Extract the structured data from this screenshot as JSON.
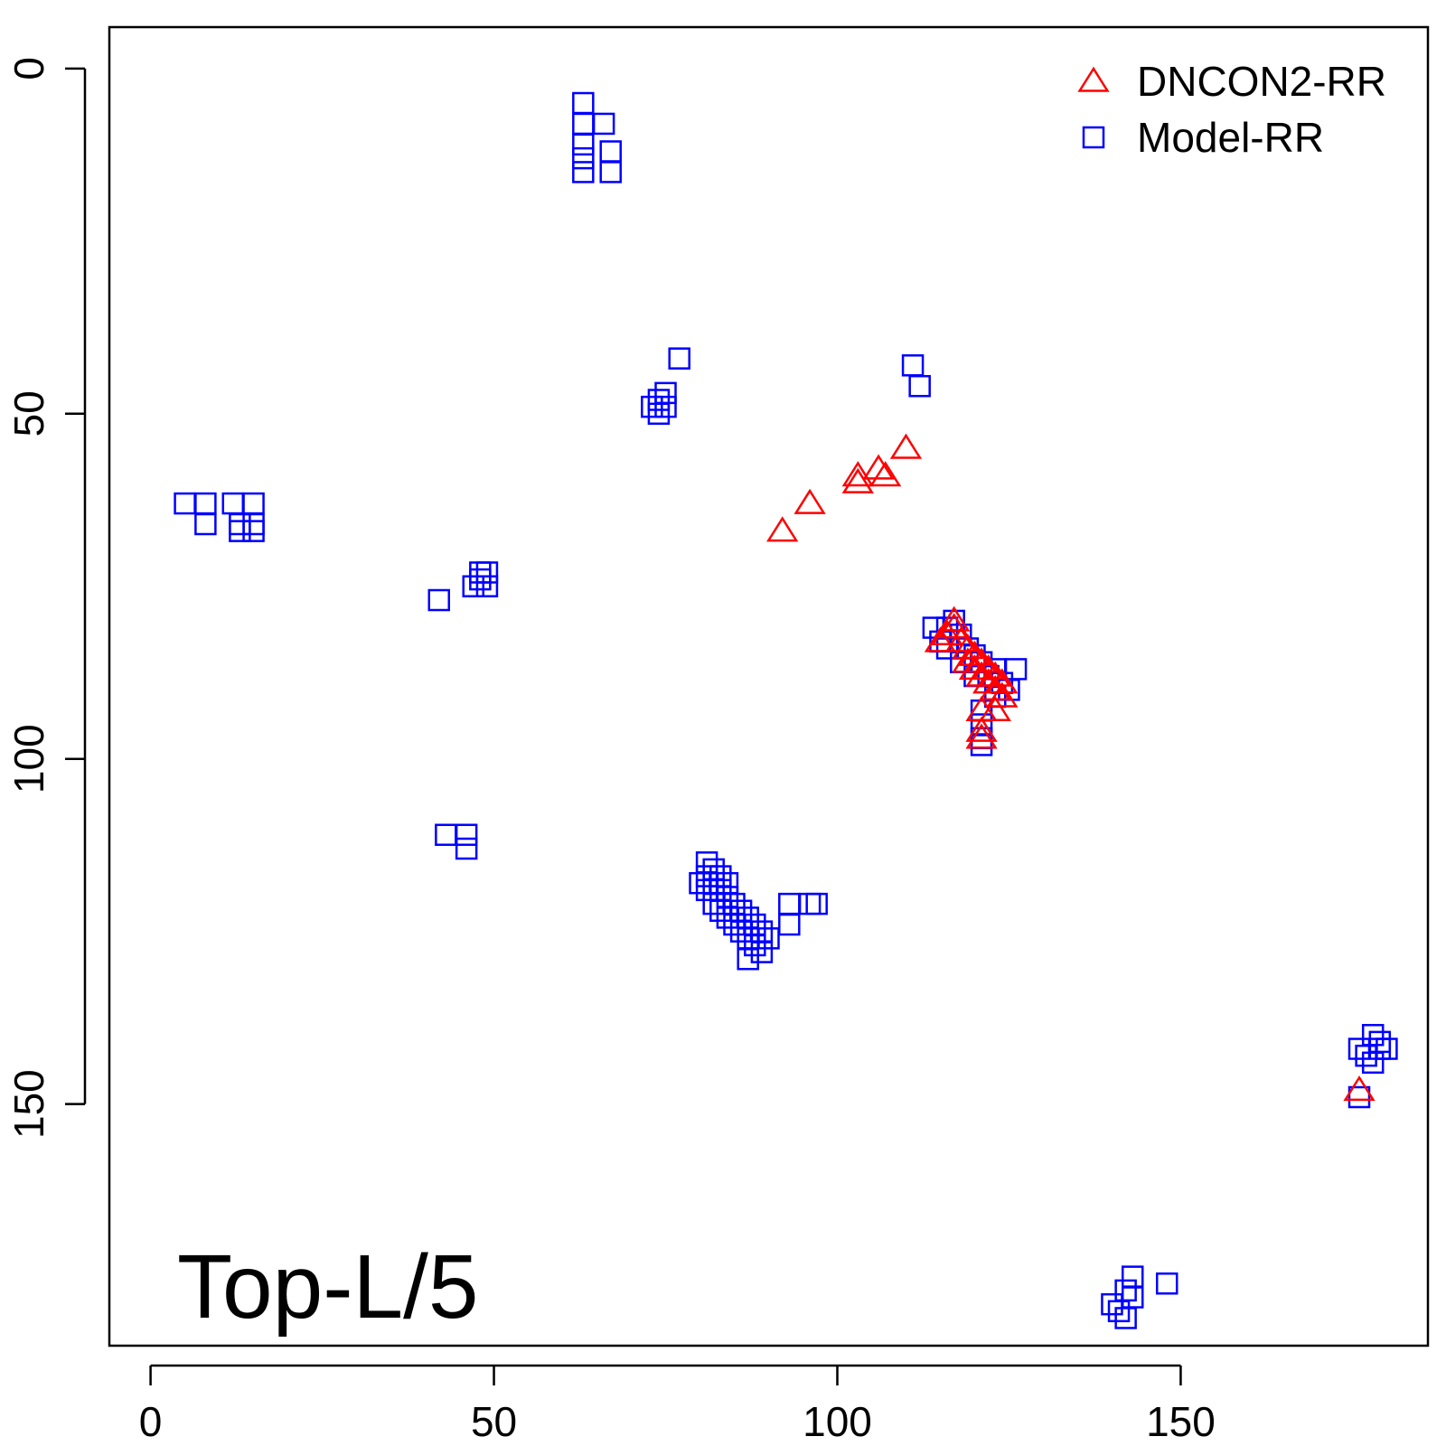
{
  "chart_data": {
    "type": "scatter",
    "title": "",
    "xlabel": "",
    "ylabel": "",
    "xlim": [
      -6,
      186
    ],
    "ylim": [
      185,
      -6
    ],
    "y_reversed": true,
    "x_ticks": [
      0,
      50,
      100,
      150
    ],
    "y_ticks": [
      0,
      50,
      100,
      150
    ],
    "grid": false,
    "legend_position": "top-right",
    "annotation": "Top-L/5",
    "series": [
      {
        "name": "DNCON2-RR",
        "marker": "triangle",
        "color": "#ff0000",
        "points": [
          [
            92,
            67
          ],
          [
            96,
            63
          ],
          [
            103,
            59
          ],
          [
            103,
            60
          ],
          [
            106,
            58
          ],
          [
            107,
            59
          ],
          [
            110,
            55
          ],
          [
            115,
            83
          ],
          [
            116,
            82
          ],
          [
            117,
            81
          ],
          [
            117,
            80
          ],
          [
            118,
            83
          ],
          [
            119,
            84
          ],
          [
            119,
            86
          ],
          [
            120,
            85
          ],
          [
            120,
            87
          ],
          [
            121,
            86
          ],
          [
            121,
            88
          ],
          [
            122,
            87
          ],
          [
            122,
            89
          ],
          [
            123,
            88
          ],
          [
            123,
            90
          ],
          [
            124,
            89
          ],
          [
            124,
            91
          ],
          [
            121,
            93
          ],
          [
            123,
            93
          ],
          [
            121,
            96
          ],
          [
            121,
            97
          ],
          [
            176,
            148
          ]
        ]
      },
      {
        "name": "Model-RR",
        "marker": "square",
        "color": "#0000ff",
        "points": [
          [
            63,
            5
          ],
          [
            63,
            8
          ],
          [
            66,
            8
          ],
          [
            63,
            11
          ],
          [
            63,
            13
          ],
          [
            67,
            12
          ],
          [
            63,
            15
          ],
          [
            67,
            15
          ],
          [
            77,
            42
          ],
          [
            111,
            43
          ],
          [
            112,
            46
          ],
          [
            75,
            47
          ],
          [
            74,
            48
          ],
          [
            75,
            49
          ],
          [
            73,
            49
          ],
          [
            74,
            50
          ],
          [
            5,
            63
          ],
          [
            8,
            63
          ],
          [
            12,
            63
          ],
          [
            15,
            63
          ],
          [
            8,
            66
          ],
          [
            13,
            66
          ],
          [
            15,
            66
          ],
          [
            13,
            67
          ],
          [
            15,
            67
          ],
          [
            48,
            73
          ],
          [
            49,
            73
          ],
          [
            48,
            74
          ],
          [
            47,
            75
          ],
          [
            49,
            75
          ],
          [
            42,
            77
          ],
          [
            114,
            81
          ],
          [
            116,
            81
          ],
          [
            117,
            80
          ],
          [
            115,
            83
          ],
          [
            116,
            84
          ],
          [
            118,
            82
          ],
          [
            119,
            84
          ],
          [
            118,
            86
          ],
          [
            120,
            85
          ],
          [
            121,
            86
          ],
          [
            120,
            88
          ],
          [
            122,
            88
          ],
          [
            123,
            87
          ],
          [
            124,
            89
          ],
          [
            125,
            90
          ],
          [
            126,
            87
          ],
          [
            123,
            91
          ],
          [
            121,
            93
          ],
          [
            121,
            95
          ],
          [
            121,
            97
          ],
          [
            121,
            98
          ],
          [
            43,
            111
          ],
          [
            46,
            111
          ],
          [
            46,
            113
          ],
          [
            81,
            115
          ],
          [
            82,
            116
          ],
          [
            81,
            117
          ],
          [
            83,
            117
          ],
          [
            80,
            118
          ],
          [
            82,
            118
          ],
          [
            84,
            118
          ],
          [
            81,
            119
          ],
          [
            83,
            119
          ],
          [
            84,
            120
          ],
          [
            82,
            121
          ],
          [
            85,
            121
          ],
          [
            83,
            122
          ],
          [
            86,
            122
          ],
          [
            84,
            123
          ],
          [
            87,
            123
          ],
          [
            85,
            124
          ],
          [
            88,
            124
          ],
          [
            86,
            125
          ],
          [
            89,
            125
          ],
          [
            87,
            126
          ],
          [
            90,
            126
          ],
          [
            88,
            127
          ],
          [
            89,
            128
          ],
          [
            87,
            129
          ],
          [
            93,
            121
          ],
          [
            96,
            121
          ],
          [
            97,
            121
          ],
          [
            93,
            124
          ],
          [
            178,
            140
          ],
          [
            179,
            141
          ],
          [
            176,
            142
          ],
          [
            177,
            143
          ],
          [
            179,
            142
          ],
          [
            180,
            142
          ],
          [
            178,
            144
          ],
          [
            176,
            149
          ],
          [
            143,
            175
          ],
          [
            148,
            176
          ],
          [
            142,
            177
          ],
          [
            143,
            178
          ],
          [
            140,
            179
          ],
          [
            141,
            180
          ],
          [
            142,
            181
          ]
        ]
      }
    ]
  }
}
